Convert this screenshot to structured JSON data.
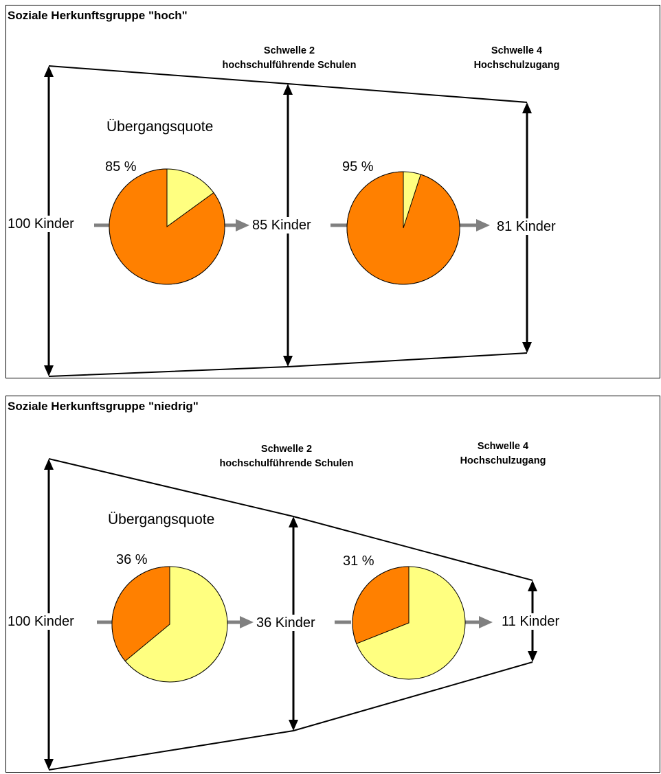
{
  "colors": {
    "transition": "#ff8000",
    "non_transition": "#ffff80",
    "arrow_gray": "#808080",
    "line": "#000000"
  },
  "panels": [
    {
      "title": "Soziale Herkunftsgruppe \"hoch\"",
      "threshold2": {
        "line1": "Schwelle 2",
        "line2": "hochschulführende Schulen"
      },
      "threshold4": {
        "line1": "Schwelle 4",
        "line2": "Hochschulzugang"
      },
      "rate_label": "Übergangsquote",
      "pie1": {
        "label": "85 %",
        "percent": 85
      },
      "pie2": {
        "label": "95 %",
        "percent": 95
      },
      "counts": [
        "100 Kinder",
        "85 Kinder",
        "81 Kinder"
      ]
    },
    {
      "title": "Soziale Herkunftsgruppe \"niedrig\"",
      "threshold2": {
        "line1": "Schwelle 2",
        "line2": "hochschulführende Schulen"
      },
      "threshold4": {
        "line1": "Schwelle 4",
        "line2": "Hochschulzugang"
      },
      "rate_label": "Übergangsquote",
      "pie1": {
        "label": "36 %",
        "percent": 36
      },
      "pie2": {
        "label": "31 %",
        "percent": 31
      },
      "counts": [
        "100 Kinder",
        "36 Kinder",
        "11 Kinder"
      ]
    }
  ]
}
